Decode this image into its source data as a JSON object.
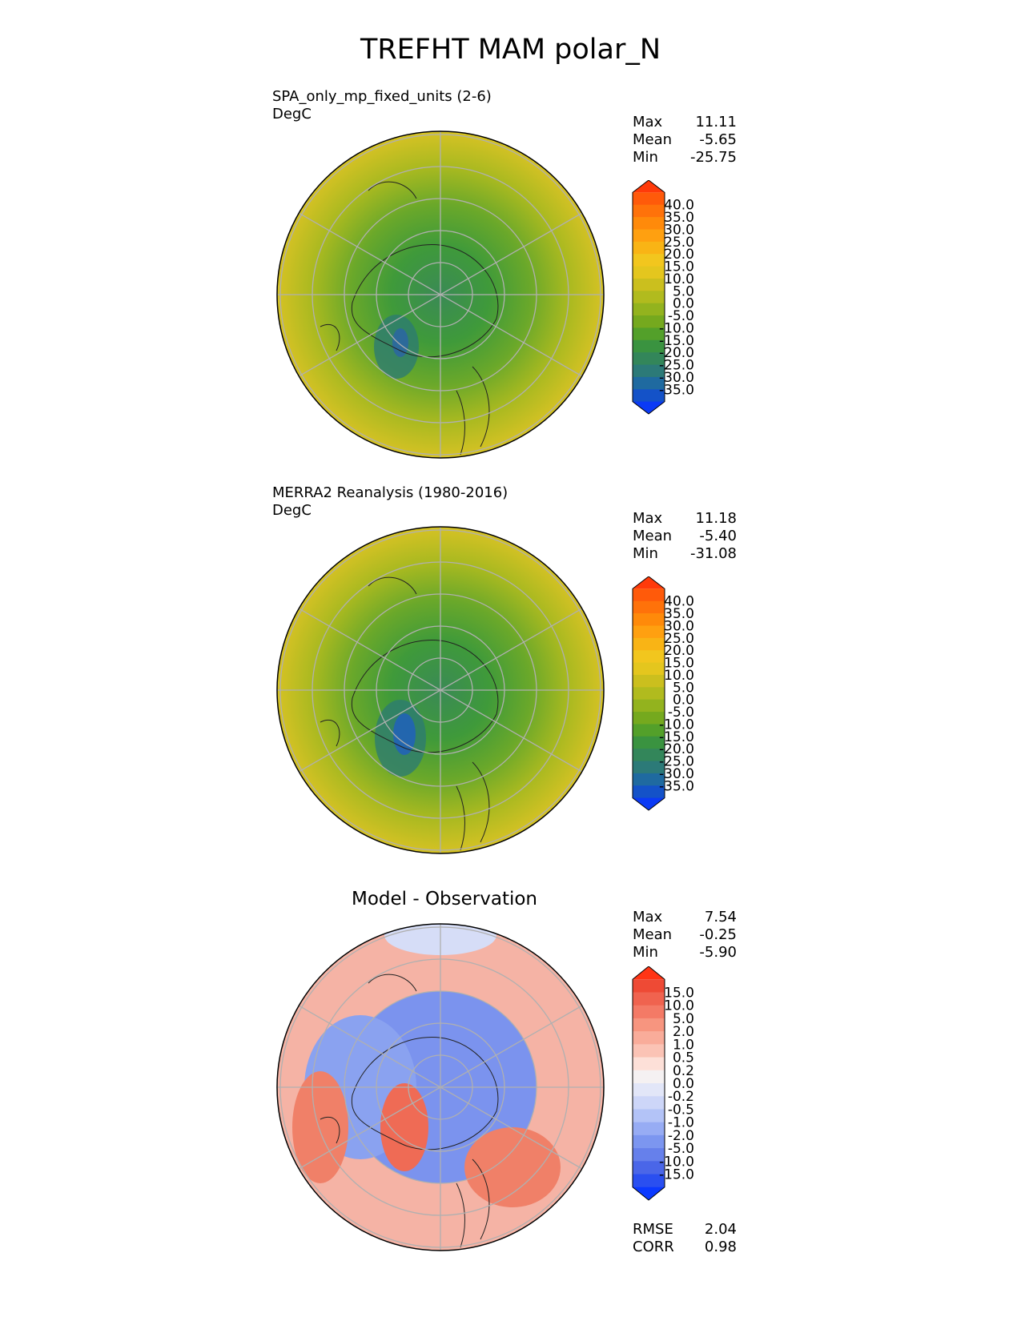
{
  "title": "TREFHT MAM polar_N",
  "panels": [
    {
      "id": "test",
      "title_line1": "SPA_only_mp_fixed_units (2-6)",
      "title_line2": "DegC",
      "stats": {
        "max_label": "Max",
        "max": "11.11",
        "mean_label": "Mean",
        "mean": "-5.65",
        "min_label": "Min",
        "min": "-25.75"
      }
    },
    {
      "id": "ref",
      "title_line1": "MERRA2 Reanalysis (1980-2016)",
      "title_line2": "DegC",
      "stats": {
        "max_label": "Max",
        "max": "11.18",
        "mean_label": "Mean",
        "mean": "-5.40",
        "min_label": "Min",
        "min": "-31.08"
      }
    },
    {
      "id": "diff",
      "title": "Model - Observation",
      "stats": {
        "max_label": "Max",
        "max": "7.54",
        "mean_label": "Mean",
        "mean": "-0.25",
        "min_label": "Min",
        "min": "-5.90"
      },
      "metrics": {
        "rmse_label": "RMSE",
        "rmse": "2.04",
        "corr_label": "CORR",
        "corr": "0.98"
      }
    }
  ],
  "colorbars": {
    "abs": {
      "labels": [
        "40.0",
        "35.0",
        "30.0",
        "25.0",
        "20.0",
        "15.0",
        "10.0",
        "5.0",
        "0.0",
        "-5.0",
        "-10.0",
        "-15.0",
        "-20.0",
        "-25.0",
        "-30.0",
        "-35.0"
      ],
      "colors_top_to_bottom": [
        "#ff3a0a",
        "#ff5a0a",
        "#ff720a",
        "#ff8a0a",
        "#ffa010",
        "#f9b415",
        "#f2c61e",
        "#e4c61e",
        "#cbbf1e",
        "#b1bb1e",
        "#93b31e",
        "#75a91e",
        "#53a02a",
        "#3a9340",
        "#33865a",
        "#2c7a78",
        "#1f6aa0",
        "#1452c8",
        "#0b3af5"
      ]
    },
    "diff": {
      "labels": [
        "15.0",
        "10.0",
        "5.0",
        "2.0",
        "1.0",
        "0.5",
        "0.2",
        "0.0",
        "-0.2",
        "-0.5",
        "-1.0",
        "-2.0",
        "-5.0",
        "-10.0",
        "-15.0"
      ],
      "colors_top_to_bottom": [
        "#ff3515",
        "#ee4a35",
        "#f0634f",
        "#f47a66",
        "#f7957f",
        "#f9ac9a",
        "#fbc3b5",
        "#fde0d8",
        "#f5f1f2",
        "#e2e6f8",
        "#cdd6f8",
        "#b3c3f7",
        "#97acf4",
        "#7c96f0",
        "#6680eb",
        "#4a66e8",
        "#2a4ff0",
        "#0b39ff"
      ]
    }
  }
}
